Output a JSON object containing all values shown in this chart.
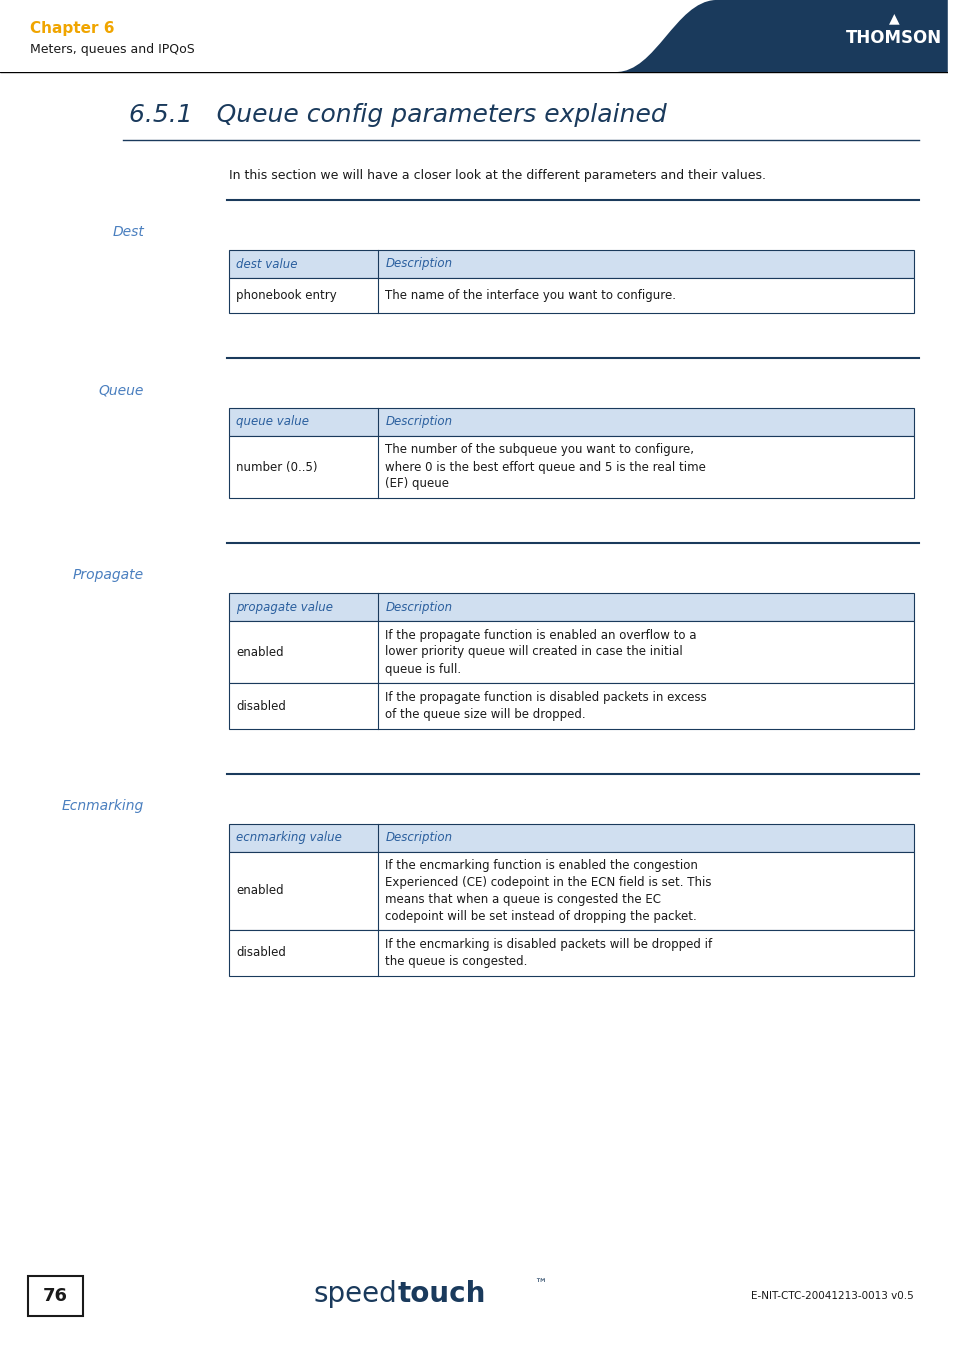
{
  "page_num": "76",
  "chapter_label": "Chapter 6",
  "chapter_sub": "Meters, queues and IPQoS",
  "title": "6.5.1   Queue config parameters explained",
  "intro": "In this section we will have a closer look at the different parameters and their values.",
  "footer_logo_text_speed": "speed",
  "footer_logo_text_touch": "touch",
  "footer_tm": "™",
  "footer_ref": "E-NIT-CTC-20041213-0013 v0.5",
  "color_header_bg": "#1a3a5c",
  "color_orange": "#f0a500",
  "color_blue_dark": "#1a3a5c",
  "color_blue_mid": "#2a5f9e",
  "color_table_header_bg": "#d0dff0",
  "color_table_border": "#1a3a5c",
  "color_body_text": "#1a1a1a",
  "color_white": "#ffffff",
  "color_section_label": "#4a7fbf",
  "sections": [
    {
      "label": "Dest",
      "header_col1": "dest value",
      "header_col2": "Description",
      "rows": [
        [
          "phonebook entry",
          "The name of the interface you want to configure."
        ]
      ]
    },
    {
      "label": "Queue",
      "header_col1": "queue value",
      "header_col2": "Description",
      "rows": [
        [
          "number (0..5)",
          "The number of the subqueue you want to configure,\nwhere 0 is the best effort queue and 5 is the real time\n(EF) queue"
        ]
      ]
    },
    {
      "label": "Propagate",
      "header_col1": "propagate value",
      "header_col2": "Description",
      "rows": [
        [
          "enabled",
          "If the propagate function is enabled an overflow to a\nlower priority queue will created in case the initial\nqueue is full."
        ],
        [
          "disabled",
          "If the propagate function is disabled packets in excess\nof the queue size will be dropped."
        ]
      ]
    },
    {
      "label": "Ecnmarking",
      "header_col1": "ecnmarking value",
      "header_col2": "Description",
      "rows": [
        [
          "enabled",
          "If the encmarking function is enabled the congestion\nExperienced (CE) codepoint in the ECN field is set. This\nmeans that when a queue is congested the EC\ncodepoint will be set instead of dropping the packet."
        ],
        [
          "disabled",
          "If the encmarking is disabled packets will be dropped if\nthe queue is congested."
        ]
      ]
    }
  ]
}
